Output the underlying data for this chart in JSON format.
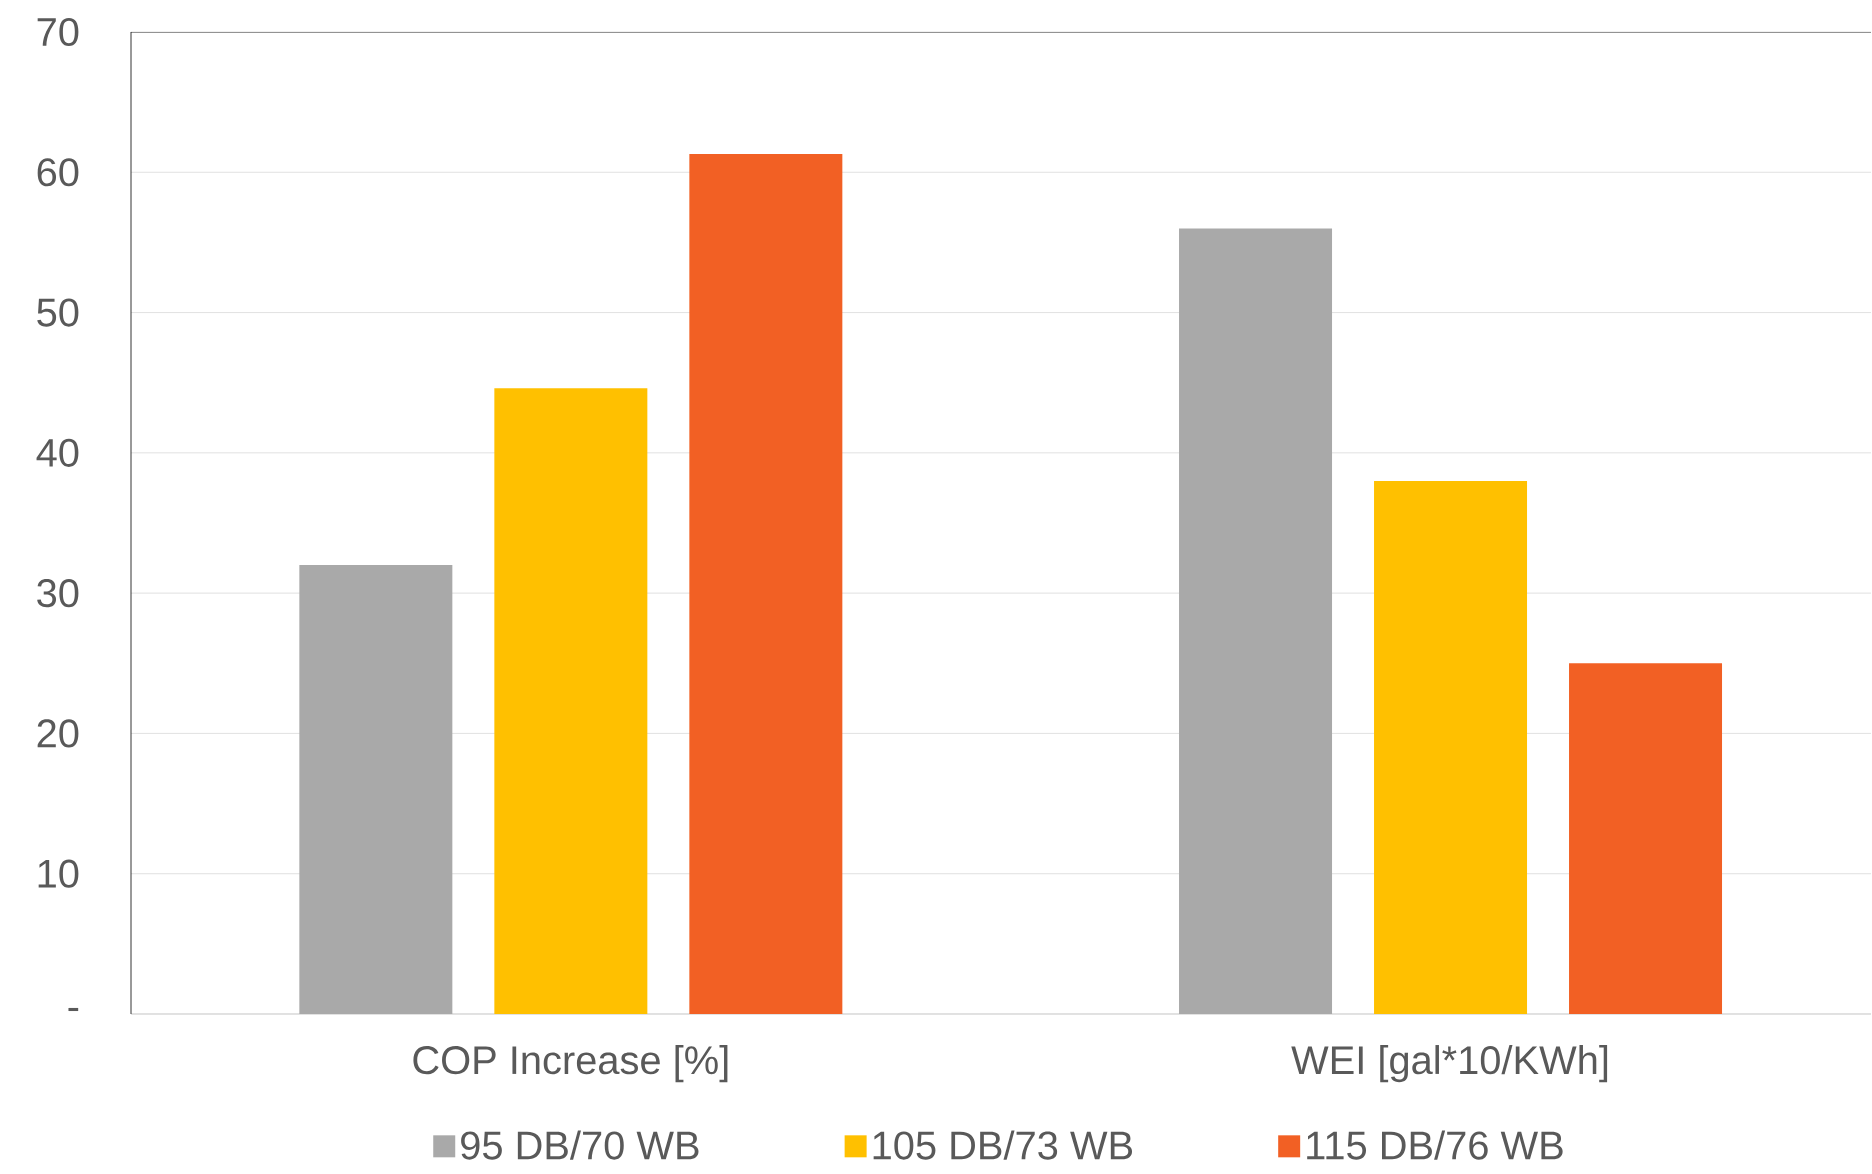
{
  "chart_data": {
    "type": "bar",
    "categories": [
      "COP Increase [%]",
      "WEI [gal*10/KWh]"
    ],
    "series": [
      {
        "name": "95 DB/70 WB",
        "color": "#a9a9a9",
        "values": [
          32.0,
          56.0
        ]
      },
      {
        "name": "105 DB/73 WB",
        "color": "#ffc000",
        "values": [
          44.6,
          38.0
        ]
      },
      {
        "name": "115 DB/76 WB",
        "color": "#f26024",
        "values": [
          61.3,
          25.0
        ]
      }
    ],
    "ylim": [
      0,
      70
    ],
    "yticks": [
      {
        "value": 0,
        "label": "-"
      },
      10,
      20,
      30,
      40,
      50,
      60,
      70
    ],
    "grid": "y",
    "legend": "bottom"
  }
}
